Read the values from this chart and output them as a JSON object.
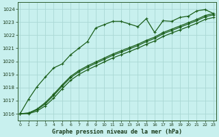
{
  "title": "Graphe pression niveau de la mer (hPa)",
  "bg_color": "#c8f0ee",
  "grid_color": "#aad8d4",
  "line_color": "#1a5e1a",
  "xlim": [
    -0.3,
    23.3
  ],
  "ylim": [
    1015.5,
    1024.5
  ],
  "yticks": [
    1016,
    1017,
    1018,
    1019,
    1020,
    1021,
    1022,
    1023,
    1024
  ],
  "xticks": [
    0,
    1,
    2,
    3,
    4,
    5,
    6,
    7,
    8,
    9,
    10,
    11,
    12,
    13,
    14,
    15,
    16,
    17,
    18,
    19,
    20,
    21,
    22,
    23
  ],
  "line1_x": [
    0,
    1,
    2,
    3,
    4,
    5,
    6,
    7,
    8,
    9,
    10,
    11,
    12,
    13,
    14,
    15,
    16,
    17,
    18,
    19,
    20,
    21,
    22,
    23
  ],
  "line1_y": [
    1016.0,
    1017.1,
    1018.05,
    1018.8,
    1019.5,
    1019.8,
    1020.5,
    1021.0,
    1021.5,
    1022.55,
    1022.8,
    1023.05,
    1023.05,
    1022.85,
    1022.65,
    1023.25,
    1022.2,
    1023.1,
    1023.05,
    1023.35,
    1023.45,
    1023.85,
    1023.95,
    1023.65
  ],
  "line2_x": [
    0,
    1,
    2,
    3,
    4,
    5,
    6,
    7,
    8,
    9,
    10,
    11,
    12,
    13,
    14,
    15,
    16,
    17,
    18,
    19,
    20,
    21,
    22,
    23
  ],
  "line2_y": [
    1016.0,
    1016.05,
    1016.3,
    1016.75,
    1017.4,
    1018.1,
    1018.75,
    1019.2,
    1019.55,
    1019.85,
    1020.15,
    1020.45,
    1020.7,
    1020.95,
    1021.2,
    1021.5,
    1021.75,
    1022.1,
    1022.35,
    1022.6,
    1022.85,
    1023.1,
    1023.4,
    1023.55
  ],
  "line3_x": [
    0,
    1,
    2,
    3,
    4,
    5,
    6,
    7,
    8,
    9,
    10,
    11,
    12,
    13,
    14,
    15,
    16,
    17,
    18,
    19,
    20,
    21,
    22,
    23
  ],
  "line3_y": [
    1016.0,
    1016.05,
    1016.35,
    1016.85,
    1017.5,
    1018.2,
    1018.85,
    1019.3,
    1019.65,
    1019.95,
    1020.25,
    1020.55,
    1020.8,
    1021.05,
    1021.3,
    1021.6,
    1021.85,
    1022.2,
    1022.45,
    1022.7,
    1022.95,
    1023.2,
    1023.5,
    1023.65
  ],
  "line4_x": [
    0,
    1,
    2,
    3,
    4,
    5,
    6,
    7,
    8,
    9,
    10,
    11,
    12,
    13,
    14,
    15,
    16,
    17,
    18,
    19,
    20,
    21,
    22,
    23
  ],
  "line4_y": [
    1016.0,
    1016.0,
    1016.2,
    1016.6,
    1017.2,
    1017.9,
    1018.55,
    1019.0,
    1019.35,
    1019.65,
    1019.95,
    1020.25,
    1020.5,
    1020.75,
    1021.0,
    1021.3,
    1021.55,
    1021.9,
    1022.15,
    1022.4,
    1022.65,
    1022.9,
    1023.2,
    1023.35
  ]
}
